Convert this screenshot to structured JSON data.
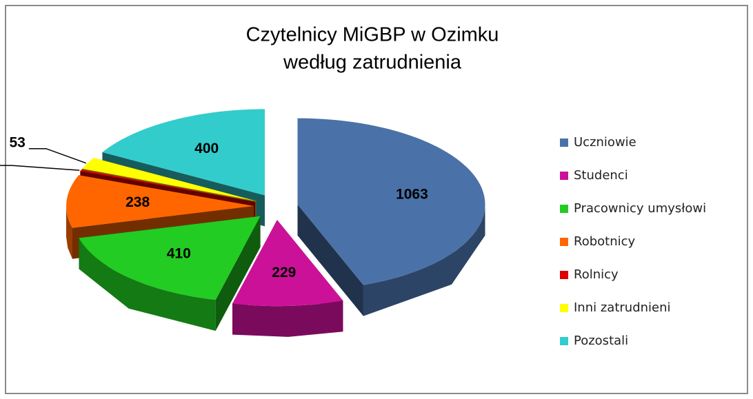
{
  "chart_data": {
    "type": "pie3d",
    "title": [
      "Czytelnicy MiGBP w Ozimku",
      "według zatrudnienia"
    ],
    "categories": [
      "Uczniowie",
      "Studenci",
      "Pracownicy umysłowi",
      "Robotnicy",
      "Rolnicy",
      "Inni zatrudnieni",
      "Pozostali"
    ],
    "values": [
      1063,
      229,
      410,
      238,
      7,
      53,
      400
    ],
    "colors": [
      "#4a72a8",
      "#cc1199",
      "#22cc22",
      "#ff6600",
      "#dd0000",
      "#ffff00",
      "#33cccc"
    ],
    "legend": "right"
  }
}
